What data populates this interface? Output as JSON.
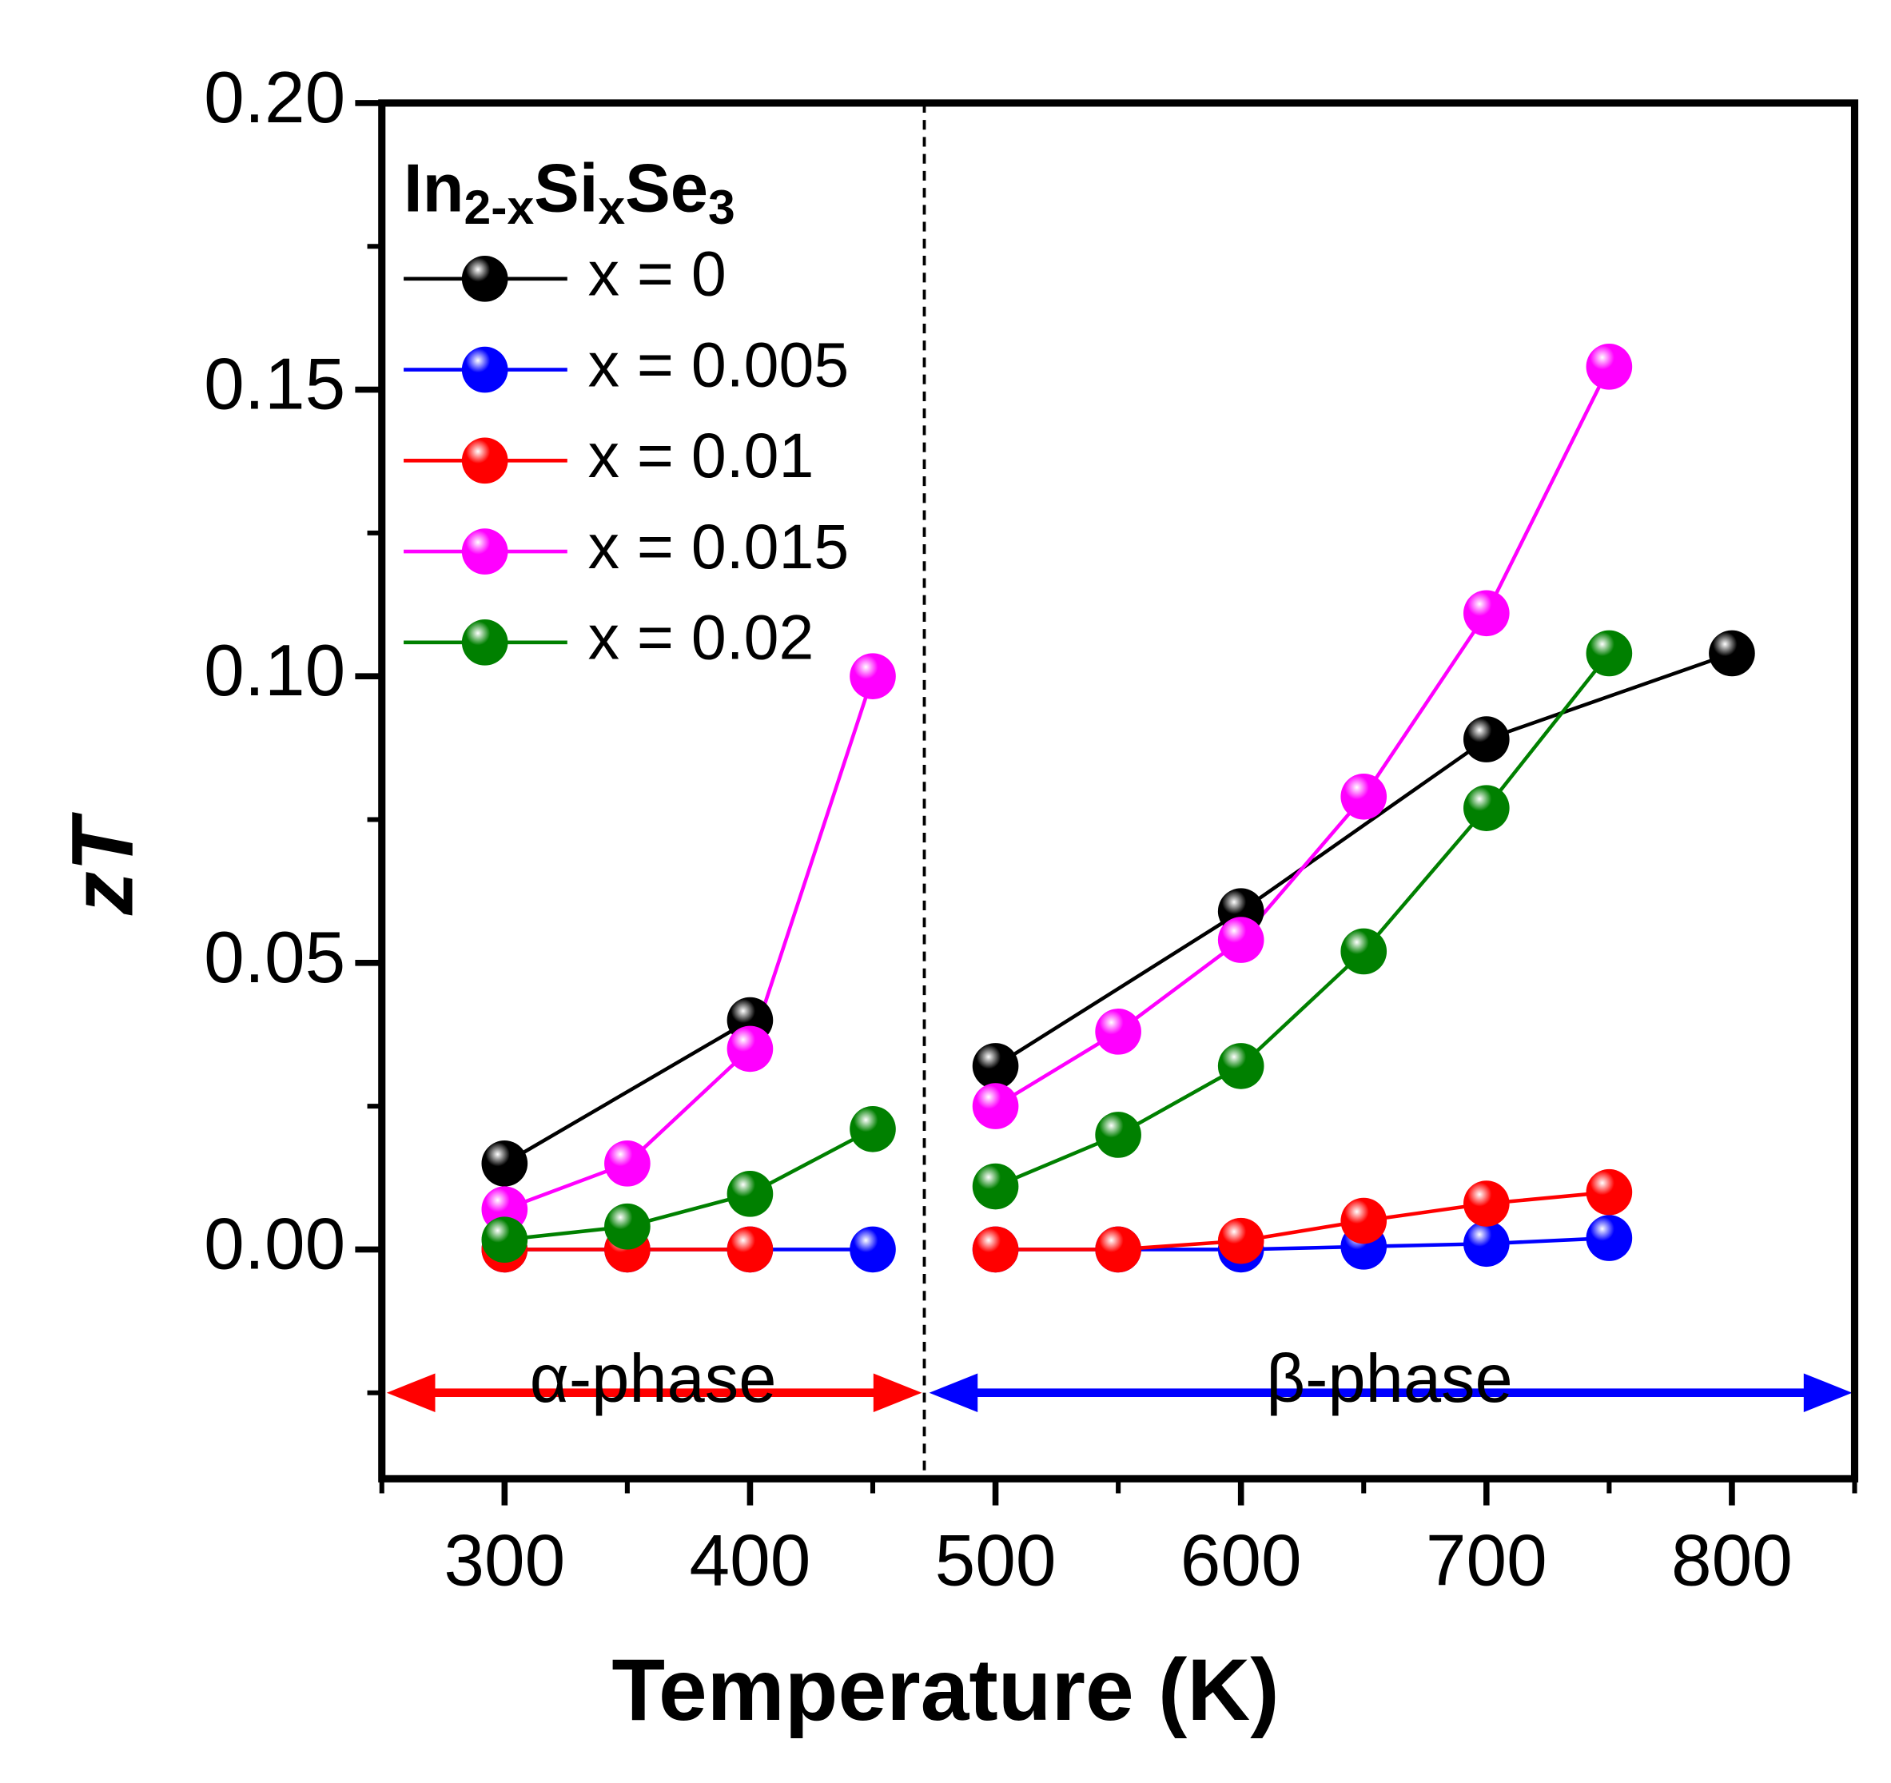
{
  "chart_data": {
    "type": "line",
    "xlabel": "Temperature (K)",
    "ylabel": "zT",
    "legend_title": [
      {
        "text": "In",
        "sub": "2-x"
      },
      {
        "text": "Si",
        "sub": "x"
      },
      {
        "text": "Se",
        "sub": "3"
      }
    ],
    "annotations": [
      "α-phase",
      "β-phase"
    ],
    "phase_boundary": 471,
    "arrow_y": -0.025,
    "annotation_y": -0.015,
    "arrow_colors": [
      "#ff0000",
      "#0000ff"
    ],
    "x": [
      300,
      350,
      400,
      450,
      500,
      550,
      600,
      650,
      700,
      750,
      800
    ],
    "series": [
      {
        "name": "x = 0",
        "color": "#000000",
        "values": [
          0.015,
          null,
          0.04,
          null,
          0.032,
          null,
          0.059,
          null,
          0.089,
          null,
          0.104
        ]
      },
      {
        "name": "x = 0.005",
        "color": "#0000ff",
        "values": [
          0,
          0,
          0,
          0,
          0,
          0,
          0,
          0.0005,
          0.001,
          0.002,
          null
        ]
      },
      {
        "name": "x = 0.01",
        "color": "#ff0000",
        "values": [
          0,
          0,
          0,
          null,
          0,
          0,
          0.0015,
          0.005,
          0.008,
          0.01,
          null
        ]
      },
      {
        "name": "x = 0.015",
        "color": "#ff00ff",
        "values": [
          0.007,
          0.015,
          0.035,
          0.1,
          0.025,
          0.038,
          0.054,
          0.079,
          0.111,
          0.154,
          null
        ]
      },
      {
        "name": "x = 0.02",
        "color": "#008000",
        "values": [
          0.0017,
          0.004,
          0.0097,
          0.021,
          0.011,
          0.02,
          0.032,
          0.052,
          0.077,
          0.104,
          null
        ]
      }
    ],
    "xlim": [
      250,
      850
    ],
    "ylim": [
      -0.04,
      0.2
    ],
    "xticks": [
      300,
      400,
      500,
      600,
      700,
      800
    ],
    "xminor": [
      250,
      350,
      450,
      550,
      650,
      750,
      850
    ],
    "yticks": [
      {
        "value": 0,
        "label": "0.00"
      },
      {
        "value": 0.05,
        "label": "0.05"
      },
      {
        "value": 0.1,
        "label": "0.10"
      },
      {
        "value": 0.15,
        "label": "0.15"
      },
      {
        "value": 0.2,
        "label": "0.20"
      }
    ],
    "yminor": [
      -0.025,
      0.025,
      0.075,
      0.125,
      0.175
    ],
    "legend": "upper left"
  }
}
